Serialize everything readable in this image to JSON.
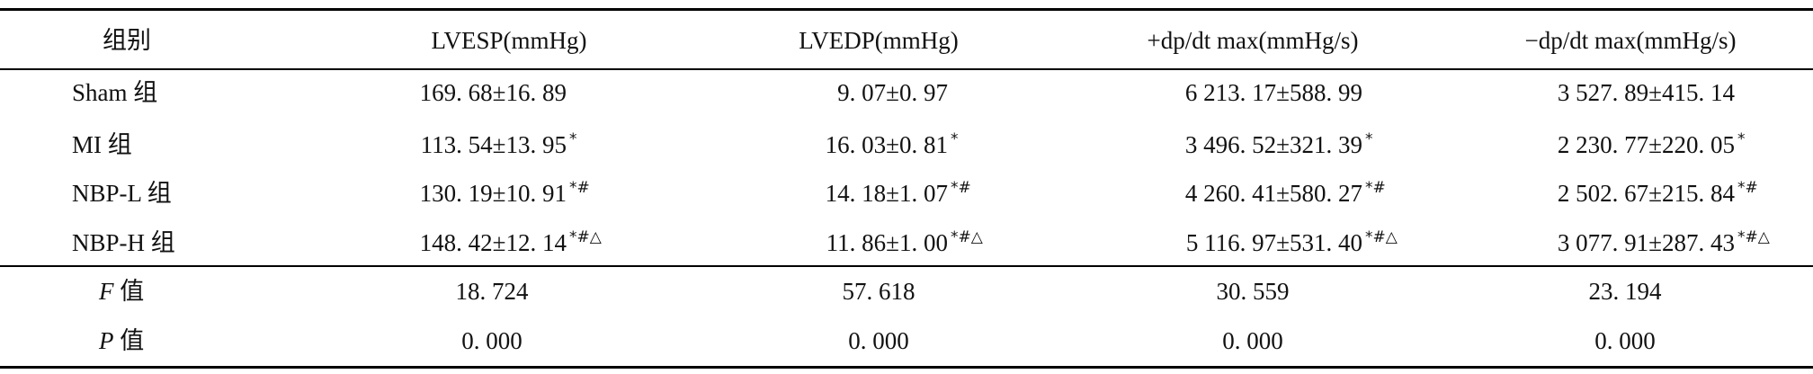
{
  "table": {
    "headers": {
      "group": "组别",
      "lvesp": "LVESP(mmHg)",
      "lvedp": "LVEDP(mmHg)",
      "dp_max_pos": "+dp/dt max(mmHg/s)",
      "dp_max_neg": "−dp/dt max(mmHg/s)"
    },
    "rows": [
      {
        "group": "Sham 组",
        "cells": [
          {
            "value": "169. 68±16. 89",
            "mark": ""
          },
          {
            "value": "9. 07±0. 97",
            "mark": ""
          },
          {
            "value": "6 213. 17±588. 99",
            "mark": ""
          },
          {
            "value": "3 527. 89±415. 14",
            "mark": ""
          }
        ]
      },
      {
        "group": "MI 组",
        "cells": [
          {
            "value": "113. 54±13. 95",
            "mark": "*"
          },
          {
            "value": "16. 03±0. 81",
            "mark": "*"
          },
          {
            "value": "3 496. 52±321. 39",
            "mark": "*"
          },
          {
            "value": "2 230. 77±220. 05",
            "mark": "*"
          }
        ]
      },
      {
        "group": "NBP-L 组",
        "cells": [
          {
            "value": "130. 19±10. 91",
            "mark": "*#"
          },
          {
            "value": "14. 18±1. 07",
            "mark": "*#"
          },
          {
            "value": "4 260. 41±580. 27",
            "mark": "*#"
          },
          {
            "value": "2 502. 67±215. 84",
            "mark": "*#"
          }
        ]
      },
      {
        "group": "NBP-H 组",
        "cells": [
          {
            "value": "148. 42±12. 14",
            "mark": "*#△"
          },
          {
            "value": "11. 86±1. 00",
            "mark": "*#△"
          },
          {
            "value": "5 116. 97±531. 40",
            "mark": "*#△"
          },
          {
            "value": "3 077. 91±287. 43",
            "mark": "*#△"
          }
        ]
      }
    ],
    "stats": [
      {
        "symbol": "F",
        "suffix": "值",
        "values": [
          "18. 724",
          "57. 618",
          "30. 559",
          "23. 194"
        ]
      },
      {
        "symbol": "P",
        "suffix": "值",
        "values": [
          "0. 000",
          "0. 000",
          "0. 000",
          "0. 000"
        ]
      }
    ]
  }
}
